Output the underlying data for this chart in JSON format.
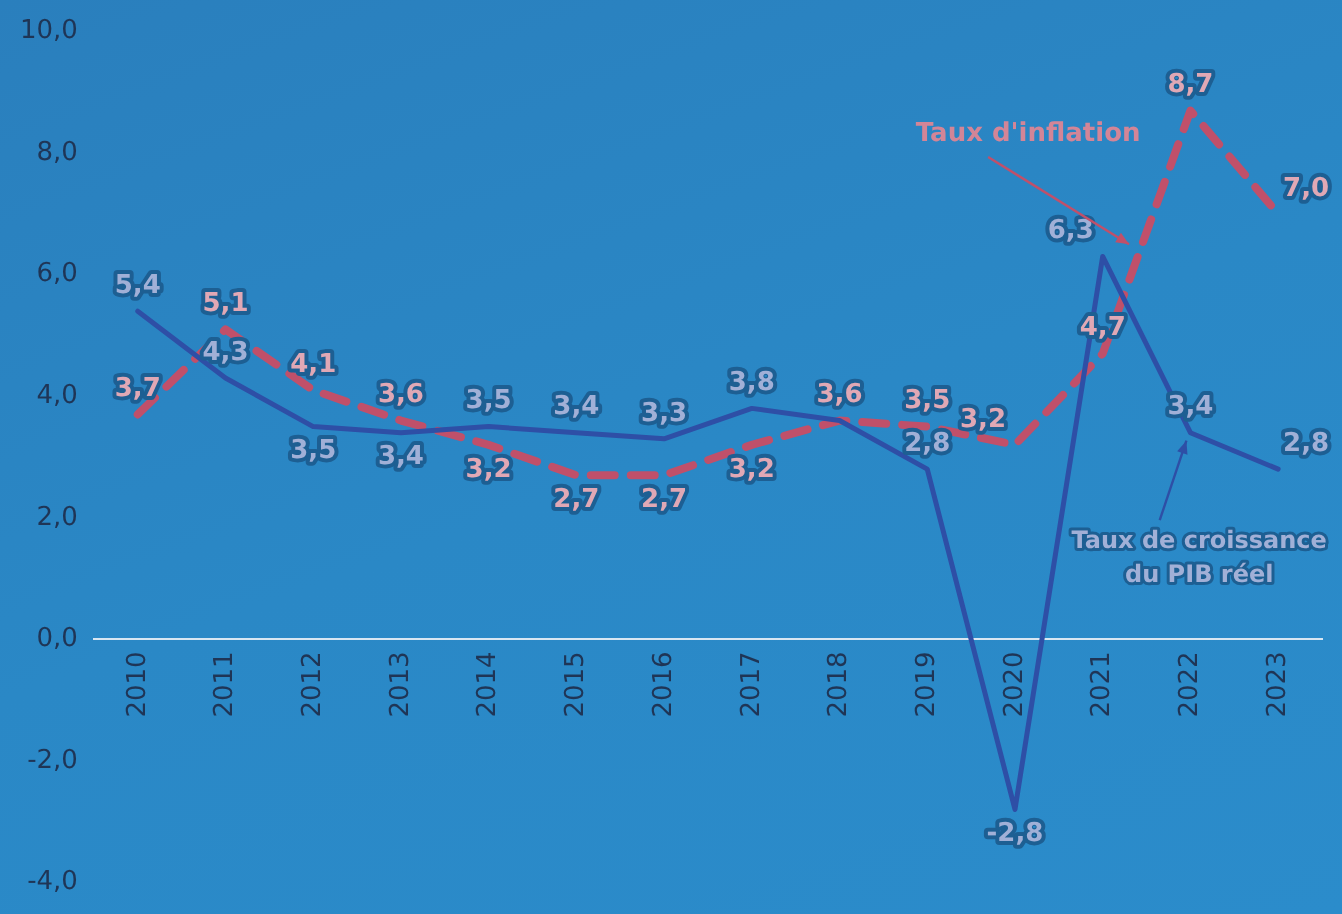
{
  "chart_data": {
    "type": "line",
    "categories": [
      "2010",
      "2011",
      "2012",
      "2013",
      "2014",
      "2015",
      "2016",
      "2017",
      "2018",
      "2019",
      "2020",
      "2021",
      "2022",
      "2023"
    ],
    "series": [
      {
        "color": "#2e4fa6",
        "line_style": "solid",
        "values": [
          5.4,
          4.3,
          3.5,
          3.4,
          3.5,
          3.4,
          3.3,
          3.8,
          3.6,
          2.8,
          -2.8,
          6.3,
          3.4,
          2.8
        ],
        "value_labels": [
          "5,4",
          "4,3",
          "3,5",
          "3,4",
          "3,5",
          "3,4",
          "3,3",
          "3,8",
          null,
          "2,8",
          "-2,8",
          "6,3",
          "3,4",
          "2,8"
        ]
      },
      {
        "color": "#c0506a",
        "line_style": "dashed",
        "values": [
          3.7,
          5.1,
          4.1,
          3.6,
          3.2,
          2.7,
          2.7,
          3.2,
          3.6,
          3.5,
          3.2,
          4.7,
          8.7,
          7.0
        ],
        "value_labels": [
          "3,7",
          "5,1",
          "4,1",
          "3,6",
          "3,2",
          "2,7",
          "2,7",
          "3,2",
          "3,6",
          "3,5",
          "3,2",
          "4,7",
          "8,7",
          "7,0"
        ]
      }
    ],
    "ylim": [
      -4,
      10
    ],
    "yticks": [
      {
        "value": -4,
        "label": "-4,0"
      },
      {
        "value": -2,
        "label": "-2,0"
      },
      {
        "value": 0,
        "label": "0,0"
      },
      {
        "value": 2,
        "label": "2,0"
      },
      {
        "value": 4,
        "label": "4,0"
      },
      {
        "value": 6,
        "label": "6,0"
      },
      {
        "value": 8,
        "label": "8,0"
      },
      {
        "value": 10,
        "label": "10,0"
      }
    ],
    "grid": false,
    "legend": false,
    "marker": "none",
    "annotations": [
      "Taux d'inflation",
      {
        "text": "Taux de croissance\ndu PIB réel",
        "x": "2022",
        "y": 3.4
      }
    ]
  }
}
